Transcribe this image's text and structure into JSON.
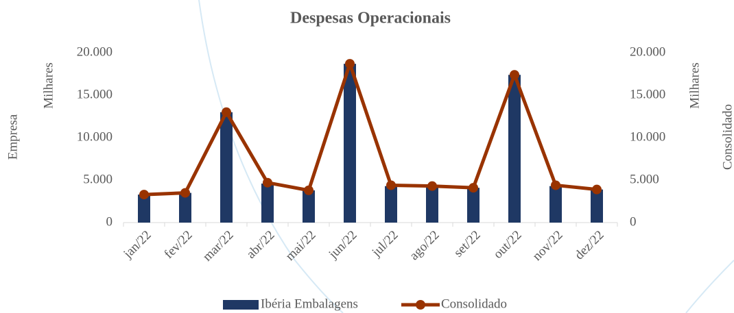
{
  "chart_data": {
    "type": "bar",
    "title": "Despesas Operacionais",
    "y_label": "Empresa",
    "y_unit": "Milhares",
    "y2_label": "Consolidado",
    "y2_unit": "Milhares",
    "categories": [
      "jan/22",
      "fev/22",
      "mar/22",
      "abr/22",
      "mai/22",
      "jun/22",
      "jul/22",
      "ago/22",
      "set/22",
      "out/22",
      "nov/22",
      "dez/22"
    ],
    "series": [
      {
        "name": "Ibéria Embalagens",
        "color": "#1f3864",
        "type": "bar",
        "values": [
          3300,
          3500,
          13000,
          4600,
          3800,
          18700,
          4300,
          4200,
          4100,
          17400,
          4300,
          3900
        ]
      },
      {
        "name": "Consolidado",
        "color": "#993300",
        "type": "line",
        "axis": "y2",
        "values": [
          3300,
          3500,
          13000,
          4700,
          3800,
          18700,
          4400,
          4300,
          4100,
          17400,
          4400,
          3900
        ]
      }
    ],
    "ylim": [
      0,
      20000
    ],
    "yticks": [
      0,
      {
        "value": 5000,
        "label": "5.000"
      },
      {
        "value": 10000,
        "label": "10.000"
      },
      {
        "value": 15000,
        "label": "15.000"
      },
      {
        "value": 20000,
        "label": "20.000"
      }
    ],
    "y2lim": [
      0,
      20000
    ],
    "y2ticks": [
      0,
      {
        "value": 5000,
        "label": "5.000"
      },
      {
        "value": 10000,
        "label": "10.000"
      },
      {
        "value": 15000,
        "label": "15.000"
      },
      {
        "value": 20000,
        "label": "20.000"
      }
    ],
    "legend": "bottom"
  }
}
